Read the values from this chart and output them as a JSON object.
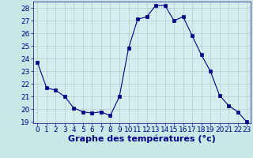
{
  "x": [
    0,
    1,
    2,
    3,
    4,
    5,
    6,
    7,
    8,
    9,
    10,
    11,
    12,
    13,
    14,
    15,
    16,
    17,
    18,
    19,
    20,
    21,
    22,
    23
  ],
  "y": [
    23.7,
    21.7,
    21.5,
    21.0,
    20.1,
    19.8,
    19.7,
    19.8,
    19.5,
    21.0,
    24.8,
    27.1,
    27.3,
    28.2,
    28.2,
    27.0,
    27.3,
    25.8,
    24.3,
    23.0,
    21.1,
    20.3,
    19.8,
    19.0
  ],
  "line_color": "#00008B",
  "marker_color": "#00008B",
  "grid_color": "#b0cece",
  "xlabel": "Graphe des températures (°c)",
  "xlabel_color": "#00008B",
  "tick_color": "#00008B",
  "ylim": [
    18.9,
    28.5
  ],
  "yticks": [
    19,
    20,
    21,
    22,
    23,
    24,
    25,
    26,
    27,
    28
  ],
  "xticks": [
    0,
    1,
    2,
    3,
    4,
    5,
    6,
    7,
    8,
    9,
    10,
    11,
    12,
    13,
    14,
    15,
    16,
    17,
    18,
    19,
    20,
    21,
    22,
    23
  ],
  "xlim": [
    -0.5,
    23.4
  ],
  "axis_bg_color": "#d4eeed",
  "outer_bg_color": "#c8e8e8",
  "xlabel_fontsize": 8,
  "tick_fontsize": 6.5
}
